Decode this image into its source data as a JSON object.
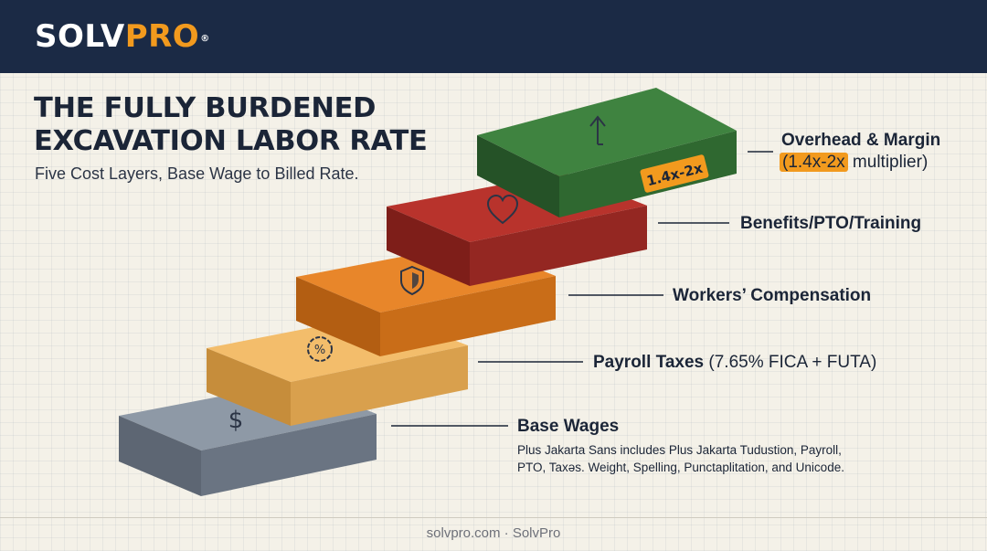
{
  "header": {
    "logo_part1": "SOLV",
    "logo_part2": "PRO",
    "logo_mark": "®"
  },
  "title_line1": "THE FULLY BURDENED",
  "title_line2": "EXCAVATION LABOR RATE",
  "subtitle": "Five Cost Layers, Base Wage to Billed Rate.",
  "layers": [
    {
      "name": "Base Wages",
      "icon": "dollar-icon",
      "color": "#7c8795"
    },
    {
      "name": "Payroll Taxes",
      "detail": "(7.65% FICA + FUTA)",
      "icon": "percent-badge-icon",
      "color": "#f0b35c"
    },
    {
      "name": "Workers’ Compensation",
      "icon": "shield-icon",
      "color": "#e07a1f"
    },
    {
      "name": "Benefits/PTO/Training",
      "icon": "heart-icon",
      "color": "#b3302a"
    },
    {
      "name": "Overhead & Margin",
      "highlight": "(1.4x-2x",
      "detail": " multiplier)",
      "tag": "1.4x-2x",
      "icon": "arrow-up-icon",
      "color": "#3f7f3a"
    }
  ],
  "base_note_line1": "Plus Jakarta Sans includes Plus Jakarta Tudustion, Payroll,",
  "base_note_line2": "PTO, Taxəs. Weight, Spelling, Punctaplitation, and Unicode.",
  "footer": "solvpro.com · SolvPro"
}
